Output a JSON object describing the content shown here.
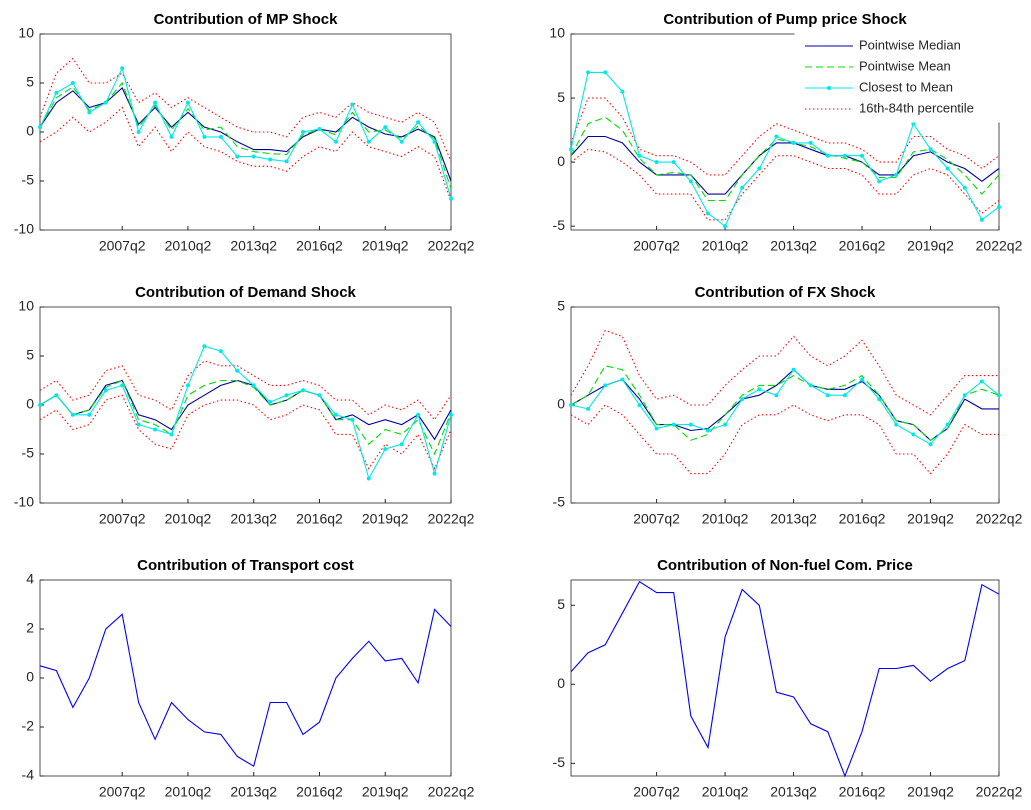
{
  "chart_data": [
    {
      "type": "line",
      "title": "Contribution of MP Shock",
      "x": [
        2003.5,
        2004.25,
        2005,
        2005.75,
        2006.5,
        2007.25,
        2008,
        2008.75,
        2009.5,
        2010.25,
        2011,
        2011.75,
        2012.5,
        2013.25,
        2014,
        2014.75,
        2015.5,
        2016.25,
        2017,
        2017.75,
        2018.5,
        2019.25,
        2020,
        2020.75,
        2021.5,
        2022.25
      ],
      "xlim": [
        2003.5,
        2022.25
      ],
      "xticks": [
        {
          "value": 2007.25,
          "label": "2007q2"
        },
        {
          "value": 2010.25,
          "label": "2010q2"
        },
        {
          "value": 2013.25,
          "label": "2013q2"
        },
        {
          "value": 2016.25,
          "label": "2016q2"
        },
        {
          "value": 2019.25,
          "label": "2019q2"
        },
        {
          "value": 2022.25,
          "label": "2022q2"
        }
      ],
      "ylim": [
        -10,
        10
      ],
      "yticks": [
        -10,
        -5,
        0,
        5,
        10
      ],
      "series": [
        {
          "name": "Pointwise Median",
          "color": "#0000a0",
          "linestyle": "solid",
          "values": [
            0.5,
            3,
            4.2,
            2.5,
            3,
            4.5,
            0.8,
            2.5,
            0.5,
            2,
            0.5,
            0,
            -1,
            -1.8,
            -1.8,
            -2,
            -0.5,
            0.3,
            0,
            1.5,
            0.5,
            -0.2,
            -0.5,
            0.3,
            -0.5,
            -5
          ]
        },
        {
          "name": "Pointwise Mean",
          "color": "#00dd00",
          "linestyle": "dashed",
          "values": [
            0.5,
            3.5,
            4.6,
            2.2,
            3,
            5,
            0.5,
            2.7,
            0.2,
            2.4,
            0.2,
            0.5,
            -1.5,
            -2,
            -2.2,
            -2.3,
            -0.3,
            0.3,
            -0.3,
            2,
            0,
            0.2,
            -0.7,
            0.6,
            -0.7,
            -5.8
          ]
        },
        {
          "name": "Closest to Mean",
          "color": "#00e8e8",
          "linestyle": "solid",
          "marker": "dot",
          "values": [
            0.5,
            4,
            5,
            2,
            3,
            6.5,
            0,
            3,
            -0.5,
            3,
            -0.5,
            -0.5,
            -2.5,
            -2.5,
            -2.8,
            -3,
            0,
            0.3,
            -1,
            2.8,
            -1,
            0.5,
            -1,
            1,
            -1,
            -6.8
          ]
        },
        {
          "name": "16th-84th percentile",
          "color": "#ff0000",
          "linestyle": "dotted",
          "upper": [
            1.5,
            6,
            7.5,
            5,
            5,
            6,
            3,
            4,
            2.5,
            3.5,
            2.5,
            1.5,
            0.5,
            0,
            0,
            -0.5,
            1.5,
            2,
            1.5,
            3,
            2,
            1.5,
            1,
            2,
            1,
            -3
          ],
          "lower": [
            -1,
            0,
            1.5,
            0,
            1,
            2.5,
            -1.5,
            0.5,
            -2,
            0,
            -1.5,
            -2,
            -3,
            -3.5,
            -3.5,
            -4,
            -2.5,
            -1.5,
            -2,
            0,
            -1.5,
            -2,
            -2.5,
            -1.5,
            -2.5,
            -7
          ]
        }
      ]
    },
    {
      "type": "line",
      "title": "Contribution of Pump price Shock",
      "legend": "upper right",
      "x": [
        2003.5,
        2004.25,
        2005,
        2005.75,
        2006.5,
        2007.25,
        2008,
        2008.75,
        2009.5,
        2010.25,
        2011,
        2011.75,
        2012.5,
        2013.25,
        2014,
        2014.75,
        2015.5,
        2016.25,
        2017,
        2017.75,
        2018.5,
        2019.25,
        2020,
        2020.75,
        2021.5,
        2022.25
      ],
      "xlim": [
        2003.5,
        2022.25
      ],
      "xticks": [
        {
          "value": 2007.25,
          "label": "2007q2"
        },
        {
          "value": 2010.25,
          "label": "2010q2"
        },
        {
          "value": 2013.25,
          "label": "2013q2"
        },
        {
          "value": 2016.25,
          "label": "2016q2"
        },
        {
          "value": 2019.25,
          "label": "2019q2"
        },
        {
          "value": 2022.25,
          "label": "2022q2"
        }
      ],
      "ylim": [
        -5.3,
        10
      ],
      "yticks": [
        -5,
        0,
        5,
        10
      ],
      "series": [
        {
          "name": "Pointwise Median",
          "color": "#0000a0",
          "linestyle": "solid",
          "values": [
            0.5,
            2,
            2,
            1.5,
            0,
            -1,
            -1,
            -1,
            -2.5,
            -2.5,
            -1,
            0.5,
            1.5,
            1.5,
            1,
            0.5,
            0.5,
            0,
            -1,
            -1,
            0.5,
            0.8,
            0,
            -0.5,
            -1.5,
            -0.5
          ]
        },
        {
          "name": "Pointwise Mean",
          "color": "#00dd00",
          "linestyle": "dashed",
          "values": [
            0.5,
            3,
            3.5,
            2.5,
            0.3,
            -1,
            -0.8,
            -1,
            -3,
            -3,
            -1,
            0.5,
            1.8,
            1.5,
            1.2,
            0.6,
            0.3,
            0,
            -1.2,
            -1.2,
            0.8,
            1,
            0.2,
            -1,
            -2.5,
            -1
          ]
        },
        {
          "name": "Closest to Mean",
          "color": "#00e8e8",
          "linestyle": "solid",
          "marker": "dot",
          "values": [
            1,
            7,
            7,
            5.5,
            0.5,
            0,
            0,
            -1.5,
            -4,
            -5,
            -2,
            -0.5,
            2,
            1.5,
            1.5,
            0.5,
            0.5,
            0.5,
            -1.5,
            -1,
            3,
            1,
            -0.5,
            -2,
            -4.5,
            -3.5
          ]
        },
        {
          "name": "16th-84th percentile",
          "color": "#ff0000",
          "linestyle": "dotted",
          "upper": [
            1.5,
            5,
            5,
            3.5,
            1,
            0.5,
            0.5,
            0,
            -1,
            -1,
            0.5,
            2,
            3,
            2.5,
            2,
            1.5,
            1.5,
            1,
            0,
            0,
            2,
            2,
            1,
            0.5,
            -0.5,
            0.5
          ],
          "lower": [
            0,
            1,
            0.8,
            0,
            -1,
            -2.5,
            -2.5,
            -2.5,
            -4.5,
            -4.5,
            -2.5,
            -1,
            0.5,
            0.5,
            0,
            -0.5,
            -0.5,
            -1,
            -2.5,
            -2.5,
            -1,
            -0.5,
            -1,
            -2.5,
            -4,
            -3
          ]
        }
      ]
    },
    {
      "type": "line",
      "title": "Contribution of Demand Shock",
      "x": [
        2003.5,
        2004.25,
        2005,
        2005.75,
        2006.5,
        2007.25,
        2008,
        2008.75,
        2009.5,
        2010.25,
        2011,
        2011.75,
        2012.5,
        2013.25,
        2014,
        2014.75,
        2015.5,
        2016.25,
        2017,
        2017.75,
        2018.5,
        2019.25,
        2020,
        2020.75,
        2021.5,
        2022.25
      ],
      "xlim": [
        2003.5,
        2022.25
      ],
      "xticks": [
        {
          "value": 2007.25,
          "label": "2007q2"
        },
        {
          "value": 2010.25,
          "label": "2010q2"
        },
        {
          "value": 2013.25,
          "label": "2013q2"
        },
        {
          "value": 2016.25,
          "label": "2016q2"
        },
        {
          "value": 2019.25,
          "label": "2019q2"
        },
        {
          "value": 2022.25,
          "label": "2022q2"
        }
      ],
      "ylim": [
        -10,
        10
      ],
      "yticks": [
        -10,
        -5,
        0,
        5,
        10
      ],
      "series": [
        {
          "name": "Pointwise Median",
          "color": "#0000a0",
          "linestyle": "solid",
          "values": [
            0,
            1,
            -1,
            -0.5,
            2,
            2.5,
            -1,
            -1.5,
            -2.5,
            0,
            1,
            2,
            2.5,
            2,
            0,
            0.5,
            1.5,
            1,
            -1.5,
            -1,
            -2,
            -1.5,
            -2,
            -1,
            -3.5,
            -0.5
          ]
        },
        {
          "name": "Pointwise Mean",
          "color": "#00dd00",
          "linestyle": "dashed",
          "values": [
            0,
            1,
            -1,
            -0.5,
            1.8,
            2.5,
            -1.5,
            -2,
            -3,
            1,
            2,
            2.5,
            2.5,
            1.8,
            0,
            0.5,
            1.5,
            1,
            -1.5,
            -1.5,
            -4,
            -2.5,
            -3,
            -1.5,
            -5,
            -0.8
          ]
        },
        {
          "name": "Closest to Mean",
          "color": "#00e8e8",
          "linestyle": "solid",
          "marker": "dot",
          "values": [
            0,
            1,
            -1,
            -1,
            1.5,
            2,
            -2,
            -2.5,
            -3,
            2,
            6,
            5.5,
            3.5,
            2,
            0.3,
            1,
            1.5,
            1,
            -1,
            -1.5,
            -7.5,
            -4.5,
            -4,
            -1,
            -7,
            -1
          ]
        },
        {
          "name": "16th-84th percentile",
          "color": "#ff0000",
          "linestyle": "dotted",
          "upper": [
            1.5,
            2.5,
            0.5,
            1,
            3.5,
            4,
            1,
            0.5,
            -0.5,
            3,
            4.5,
            4,
            4,
            3,
            2,
            2,
            2.5,
            2,
            0.5,
            0.5,
            -1,
            0,
            -0.5,
            0.5,
            -1.5,
            1
          ],
          "lower": [
            -1.5,
            -0.5,
            -2.5,
            -2,
            0.5,
            1,
            -2.5,
            -4,
            -4.5,
            -1,
            0,
            0.5,
            0.5,
            0,
            -1.5,
            -1,
            0,
            -0.5,
            -3,
            -3,
            -6.5,
            -4,
            -5,
            -3,
            -6.5,
            -2.5
          ]
        }
      ]
    },
    {
      "type": "line",
      "title": "Contribution of FX Shock",
      "x": [
        2003.5,
        2004.25,
        2005,
        2005.75,
        2006.5,
        2007.25,
        2008,
        2008.75,
        2009.5,
        2010.25,
        2011,
        2011.75,
        2012.5,
        2013.25,
        2014,
        2014.75,
        2015.5,
        2016.25,
        2017,
        2017.75,
        2018.5,
        2019.25,
        2020,
        2020.75,
        2021.5,
        2022.25
      ],
      "xlim": [
        2003.5,
        2022.25
      ],
      "xticks": [
        {
          "value": 2007.25,
          "label": "2007q2"
        },
        {
          "value": 2010.25,
          "label": "2010q2"
        },
        {
          "value": 2013.25,
          "label": "2013q2"
        },
        {
          "value": 2016.25,
          "label": "2016q2"
        },
        {
          "value": 2019.25,
          "label": "2019q2"
        },
        {
          "value": 2022.25,
          "label": "2022q2"
        }
      ],
      "ylim": [
        -5,
        5
      ],
      "yticks": [
        -5,
        0,
        5
      ],
      "series": [
        {
          "name": "Pointwise Median",
          "color": "#0000a0",
          "linestyle": "solid",
          "values": [
            0,
            0.5,
            1,
            1.3,
            0.3,
            -1,
            -1,
            -1.3,
            -1.2,
            -0.5,
            0.3,
            0.5,
            1,
            1.8,
            1,
            0.8,
            0.8,
            1.2,
            0.5,
            -0.8,
            -1,
            -1.8,
            -1.2,
            0.3,
            -0.2,
            -0.2
          ]
        },
        {
          "name": "Pointwise Mean",
          "color": "#00dd00",
          "linestyle": "dashed",
          "values": [
            0,
            0.5,
            2,
            1.8,
            0.5,
            -1,
            -1,
            -1.8,
            -1.5,
            -0.5,
            0.5,
            1,
            1,
            1.5,
            1,
            0.8,
            1,
            1.5,
            0.5,
            -0.8,
            -1,
            -1.8,
            -1.2,
            0.5,
            0.8,
            0.5
          ]
        },
        {
          "name": "Closest to Mean",
          "color": "#00e8e8",
          "linestyle": "solid",
          "marker": "dot",
          "values": [
            0,
            -0.2,
            1,
            1.3,
            0,
            -1.2,
            -1,
            -1,
            -1.3,
            -1,
            0.3,
            0.8,
            0.5,
            1.8,
            1,
            0.5,
            0.5,
            1.3,
            0.3,
            -1,
            -1.5,
            -2,
            -1,
            0.5,
            1.2,
            0.5
          ]
        },
        {
          "name": "16th-84th percentile",
          "color": "#ff0000",
          "linestyle": "dotted",
          "upper": [
            0.5,
            2,
            3.8,
            3.5,
            1.5,
            0.3,
            0.5,
            0,
            0,
            1,
            1.8,
            2.5,
            2.5,
            3.5,
            2.5,
            2,
            2.5,
            3.3,
            2,
            0.5,
            0,
            -0.5,
            0.5,
            1.5,
            1.5,
            1.5
          ],
          "lower": [
            -0.5,
            -1,
            0,
            -0.5,
            -1.5,
            -2.5,
            -2.5,
            -3.5,
            -3.5,
            -2.5,
            -1,
            -0.5,
            -0.5,
            0,
            -0.5,
            -0.8,
            -0.5,
            -0.5,
            -1,
            -2.5,
            -2.5,
            -3.5,
            -2.5,
            -1,
            -1.5,
            -1.5
          ]
        }
      ]
    },
    {
      "type": "line",
      "title": "Contribution of Transport cost",
      "x": [
        2003.5,
        2004.25,
        2005,
        2005.75,
        2006.5,
        2007.25,
        2008,
        2008.75,
        2009.5,
        2010.25,
        2011,
        2011.75,
        2012.5,
        2013.25,
        2014,
        2014.75,
        2015.5,
        2016.25,
        2017,
        2017.75,
        2018.5,
        2019.25,
        2020,
        2020.75,
        2021.5,
        2022.25
      ],
      "xlim": [
        2003.5,
        2022.25
      ],
      "xticks": [
        {
          "value": 2007.25,
          "label": "2007q2"
        },
        {
          "value": 2010.25,
          "label": "2010q2"
        },
        {
          "value": 2013.25,
          "label": "2013q2"
        },
        {
          "value": 2016.25,
          "label": "2016q2"
        },
        {
          "value": 2019.25,
          "label": "2019q2"
        },
        {
          "value": 2022.25,
          "label": "2022q2"
        }
      ],
      "ylim": [
        -4,
        4
      ],
      "yticks": [
        -4,
        -2,
        0,
        2,
        4
      ],
      "series": [
        {
          "color": "#0000ff",
          "linestyle": "solid",
          "values": [
            0.5,
            0.3,
            -1.2,
            0,
            2,
            2.6,
            -1,
            -2.5,
            -1,
            -1.7,
            -2.2,
            -2.3,
            -3.2,
            -3.6,
            -1,
            -1,
            -2.3,
            -1.8,
            0,
            0.8,
            1.5,
            0.7,
            0.8,
            -0.2,
            2.8,
            2.1
          ]
        }
      ]
    },
    {
      "type": "line",
      "title": "Contribution of Non-fuel Com. Price",
      "x": [
        2003.5,
        2004.25,
        2005,
        2005.75,
        2006.5,
        2007.25,
        2008,
        2008.75,
        2009.5,
        2010.25,
        2011,
        2011.75,
        2012.5,
        2013.25,
        2014,
        2014.75,
        2015.5,
        2016.25,
        2017,
        2017.75,
        2018.5,
        2019.25,
        2020,
        2020.75,
        2021.5,
        2022.25
      ],
      "xlim": [
        2003.5,
        2022.25
      ],
      "xticks": [
        {
          "value": 2007.25,
          "label": "2007q2"
        },
        {
          "value": 2010.25,
          "label": "2010q2"
        },
        {
          "value": 2013.25,
          "label": "2013q2"
        },
        {
          "value": 2016.25,
          "label": "2016q2"
        },
        {
          "value": 2019.25,
          "label": "2019q2"
        },
        {
          "value": 2022.25,
          "label": "2022q2"
        }
      ],
      "ylim": [
        -5.8,
        6.6
      ],
      "yticks": [
        -5,
        0,
        5
      ],
      "series": [
        {
          "color": "#0000ff",
          "linestyle": "solid",
          "values": [
            0.8,
            2,
            2.5,
            4.5,
            6.5,
            5.8,
            5.8,
            -2,
            -4,
            3,
            6,
            5,
            -0.5,
            -0.8,
            -2.5,
            -3,
            -5.8,
            -3,
            1,
            1,
            1.2,
            0.2,
            1,
            1.5,
            6.3,
            5.7
          ]
        }
      ]
    }
  ]
}
